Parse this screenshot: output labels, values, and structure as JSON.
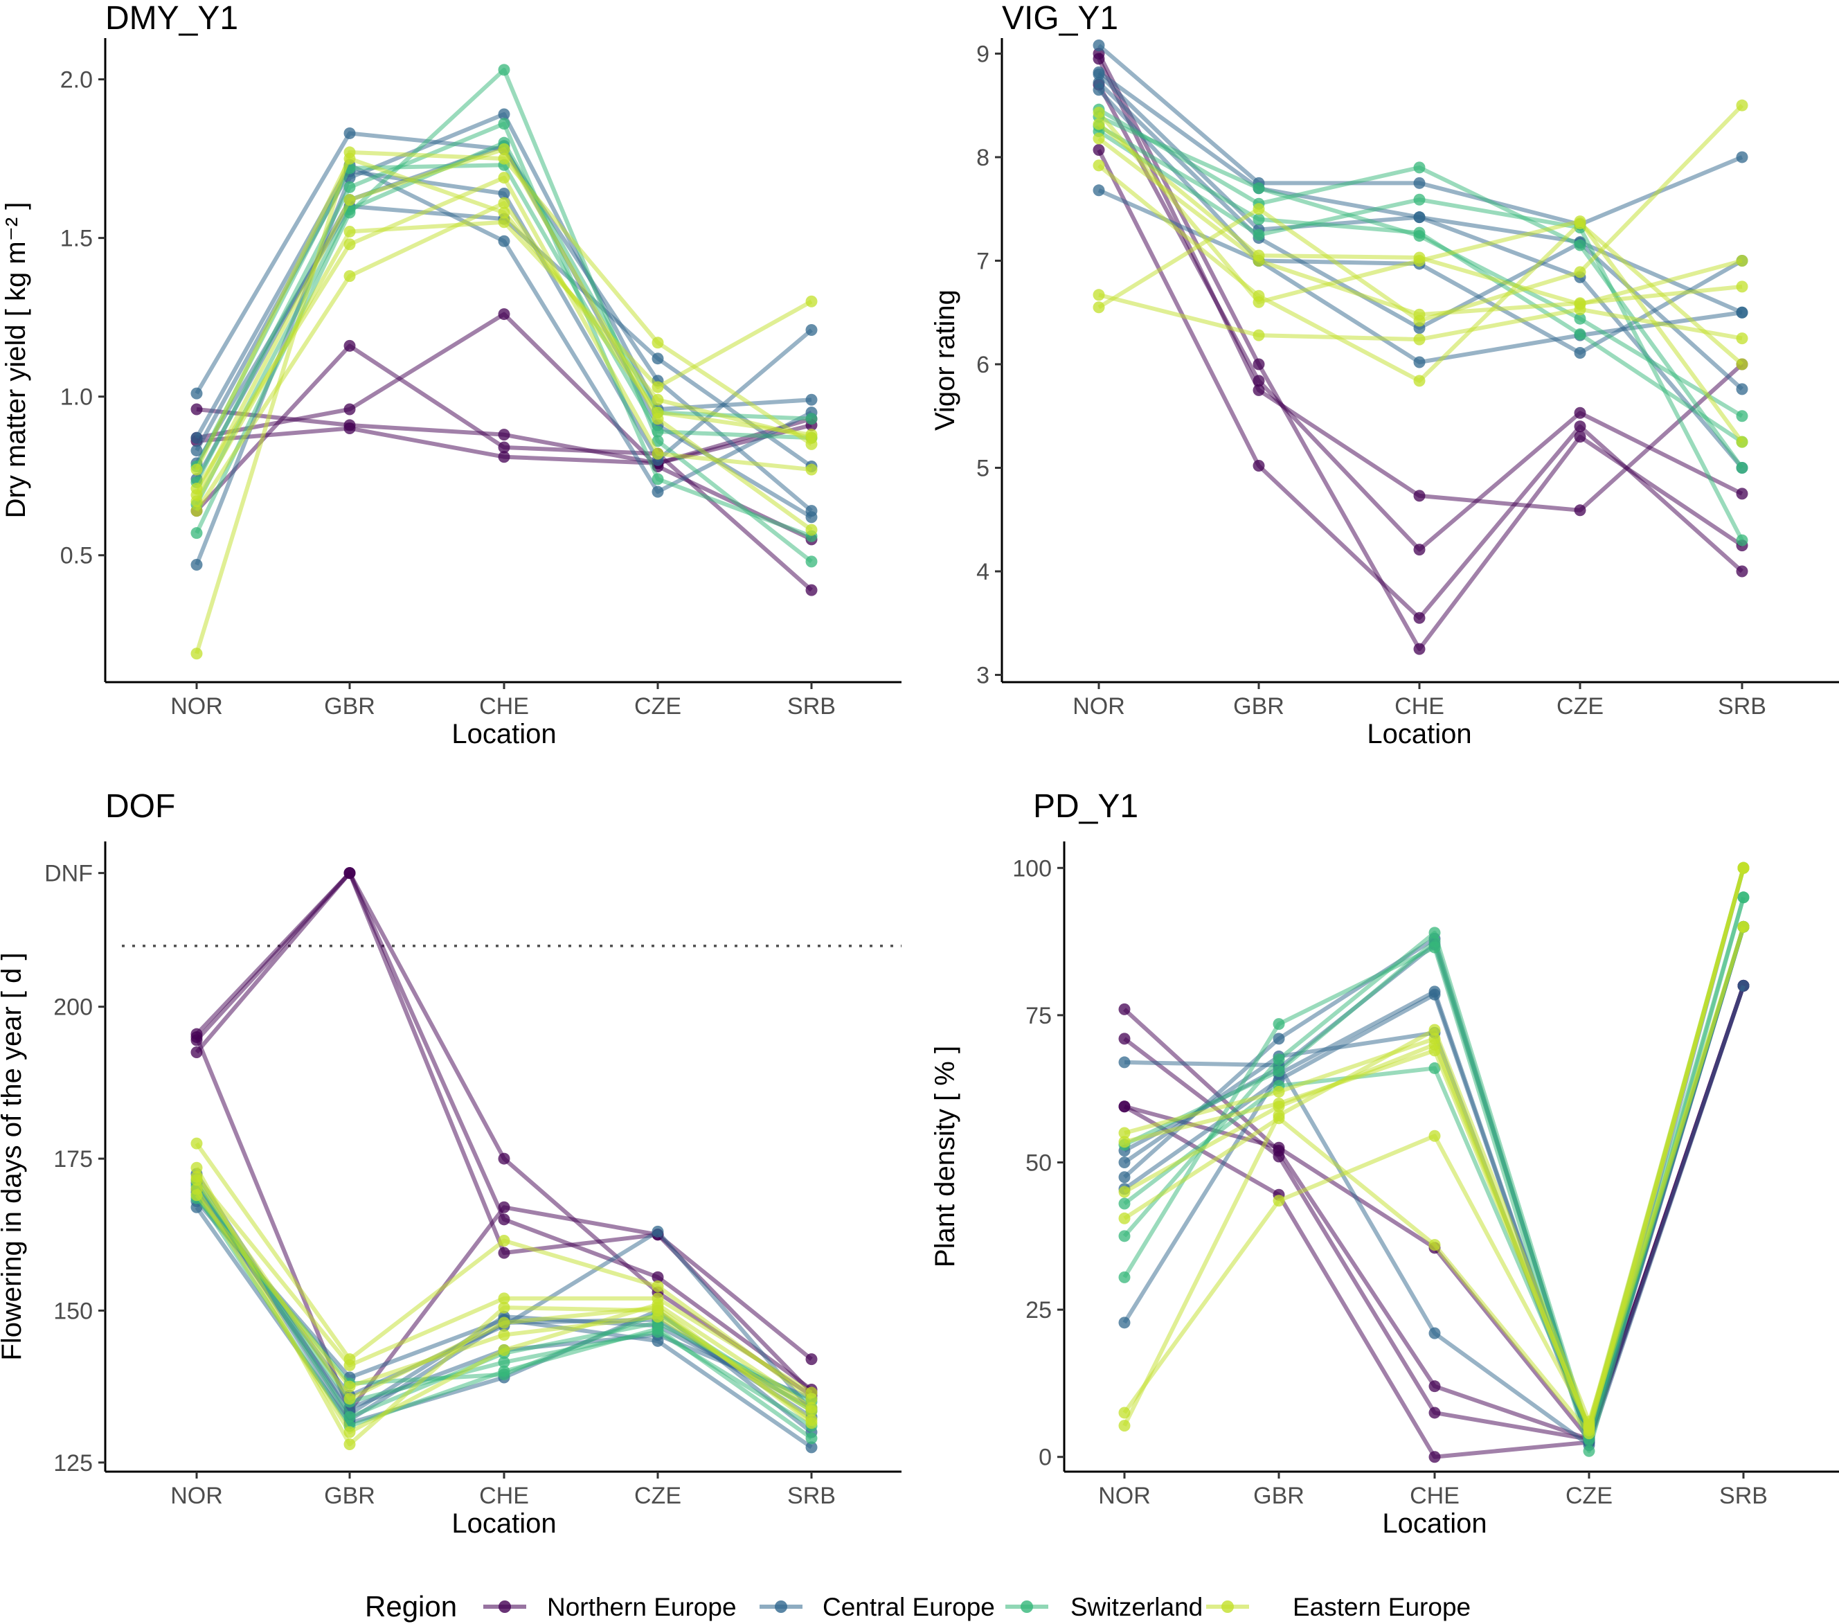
{
  "legend": {
    "title": "Region",
    "entries": [
      {
        "name": "Northern Europe",
        "color": "#440154"
      },
      {
        "name": "Central Europe",
        "color": "#31688E"
      },
      {
        "name": "Switzerland",
        "color": "#35B779"
      },
      {
        "name": "Eastern Europe",
        "color": "#C2E02A"
      }
    ]
  },
  "chart_data": [
    {
      "id": "dmy",
      "type": "line",
      "title": "DMY_Y1",
      "xlabel": "Location",
      "ylabel": "Dry matter yield [ kg m⁻² ]",
      "categories": [
        "NOR",
        "GBR",
        "CHE",
        "CZE",
        "SRB"
      ],
      "ylim": [
        0.1,
        2.13
      ],
      "yticks": [
        {
          "v": 0.5,
          "label": "0.5"
        },
        {
          "v": 1.0,
          "label": "1.0"
        },
        {
          "v": 1.5,
          "label": "1.5"
        },
        {
          "v": 2.0,
          "label": "2.0"
        }
      ],
      "series": [
        {
          "region": "Northern Europe",
          "values": [
            0.96,
            0.91,
            0.88,
            0.79,
            0.91
          ]
        },
        {
          "region": "Northern Europe",
          "values": [
            0.87,
            0.96,
            1.26,
            0.78,
            0.55
          ]
        },
        {
          "region": "Northern Europe",
          "values": [
            0.64,
            1.16,
            0.84,
            0.82,
            0.39
          ]
        },
        {
          "region": "Northern Europe",
          "values": [
            0.86,
            0.9,
            0.81,
            0.79,
            0.93
          ]
        },
        {
          "region": "Central Europe",
          "values": [
            1.01,
            1.83,
            1.78,
            1.05,
            0.64
          ]
        },
        {
          "region": "Central Europe",
          "values": [
            0.47,
            1.69,
            1.89,
            0.96,
            0.99
          ]
        },
        {
          "region": "Central Europe",
          "values": [
            0.83,
            1.71,
            1.64,
            0.8,
            1.21
          ]
        },
        {
          "region": "Central Europe",
          "values": [
            0.79,
            1.6,
            1.56,
            1.12,
            0.78
          ]
        },
        {
          "region": "Central Europe",
          "values": [
            0.87,
            1.73,
            1.49,
            0.7,
            0.95
          ]
        },
        {
          "region": "Central Europe",
          "values": [
            0.74,
            1.62,
            1.79,
            0.91,
            0.62
          ]
        },
        {
          "region": "Switzerland",
          "values": [
            0.57,
            1.58,
            2.03,
            0.86,
            0.48
          ]
        },
        {
          "region": "Switzerland",
          "values": [
            0.73,
            1.66,
            1.86,
            0.74,
            0.56
          ]
        },
        {
          "region": "Switzerland",
          "values": [
            0.78,
            1.72,
            1.73,
            0.89,
            0.87
          ]
        },
        {
          "region": "Switzerland",
          "values": [
            0.66,
            1.59,
            1.8,
            0.95,
            0.93
          ]
        },
        {
          "region": "Eastern Europe",
          "values": [
            0.19,
            1.77,
            1.75,
            1.17,
            0.85
          ]
        },
        {
          "region": "Eastern Europe",
          "values": [
            0.67,
            1.52,
            1.55,
            1.03,
            1.3
          ]
        },
        {
          "region": "Eastern Europe",
          "values": [
            0.71,
            1.48,
            1.69,
            0.82,
            0.77
          ]
        },
        {
          "region": "Eastern Europe",
          "values": [
            0.64,
            1.38,
            1.61,
            0.95,
            0.88
          ]
        },
        {
          "region": "Eastern Europe",
          "values": [
            0.69,
            1.62,
            1.78,
            0.93,
            0.58
          ]
        },
        {
          "region": "Eastern Europe",
          "values": [
            0.77,
            1.75,
            1.58,
            0.99,
            0.87
          ]
        }
      ]
    },
    {
      "id": "vig",
      "type": "line",
      "title": "VIG_Y1",
      "xlabel": "Location",
      "ylabel": "Vigor rating",
      "categories": [
        "NOR",
        "GBR",
        "CHE",
        "CZE",
        "SRB"
      ],
      "ylim": [
        2.93,
        9.15
      ],
      "yticks": [
        {
          "v": 3,
          "label": "3"
        },
        {
          "v": 4,
          "label": "4"
        },
        {
          "v": 5,
          "label": "5"
        },
        {
          "v": 6,
          "label": "6"
        },
        {
          "v": 7,
          "label": "7"
        },
        {
          "v": 8,
          "label": "8"
        },
        {
          "v": 9,
          "label": "9"
        }
      ],
      "series": [
        {
          "region": "Northern Europe",
          "values": [
            9.0,
            6.0,
            3.25,
            5.3,
            4.25
          ]
        },
        {
          "region": "Northern Europe",
          "values": [
            8.07,
            5.02,
            3.55,
            5.4,
            4.0
          ]
        },
        {
          "region": "Northern Europe",
          "values": [
            8.7,
            5.84,
            4.21,
            5.53,
            4.75
          ]
        },
        {
          "region": "Northern Europe",
          "values": [
            8.95,
            5.75,
            4.73,
            4.59,
            6.0
          ]
        },
        {
          "region": "Central Europe",
          "values": [
            9.08,
            7.75,
            7.75,
            7.35,
            8.0
          ]
        },
        {
          "region": "Central Europe",
          "values": [
            8.8,
            7.3,
            7.42,
            6.84,
            5.0
          ]
        },
        {
          "region": "Central Europe",
          "values": [
            7.68,
            7.0,
            6.02,
            6.28,
            6.5
          ]
        },
        {
          "region": "Central Europe",
          "values": [
            8.72,
            7.22,
            6.35,
            7.17,
            5.76
          ]
        },
        {
          "region": "Central Europe",
          "values": [
            8.65,
            7.0,
            6.97,
            6.11,
            7.0
          ]
        },
        {
          "region": "Central Europe",
          "values": [
            8.82,
            7.7,
            7.42,
            7.18,
            6.5
          ]
        },
        {
          "region": "Switzerland",
          "values": [
            8.46,
            7.55,
            7.9,
            7.15,
            5.0
          ]
        },
        {
          "region": "Switzerland",
          "values": [
            8.25,
            7.25,
            7.59,
            7.32,
            4.3
          ]
        },
        {
          "region": "Switzerland",
          "values": [
            8.39,
            7.7,
            7.24,
            6.44,
            5.5
          ]
        },
        {
          "region": "Switzerland",
          "values": [
            8.3,
            7.4,
            7.27,
            6.29,
            5.25
          ]
        },
        {
          "region": "Eastern Europe",
          "values": [
            6.55,
            7.5,
            6.42,
            6.89,
            8.5
          ]
        },
        {
          "region": "Eastern Europe",
          "values": [
            6.67,
            6.28,
            6.24,
            6.53,
            6.25
          ]
        },
        {
          "region": "Eastern Europe",
          "values": [
            7.92,
            6.66,
            5.84,
            7.36,
            6.0
          ]
        },
        {
          "region": "Eastern Europe",
          "values": [
            8.43,
            6.6,
            7.0,
            7.38,
            5.25
          ]
        },
        {
          "region": "Eastern Europe",
          "values": [
            8.18,
            7.0,
            6.48,
            6.59,
            6.75
          ]
        },
        {
          "region": "Eastern Europe",
          "values": [
            8.32,
            7.05,
            7.03,
            6.58,
            7.0
          ]
        }
      ]
    },
    {
      "id": "dof",
      "type": "line",
      "title": "DOF",
      "xlabel": "Location",
      "ylabel": "Flowering in days of the year [ d ]",
      "categories": [
        "NOR",
        "GBR",
        "CHE",
        "CZE",
        "SRB"
      ],
      "ylim": [
        123.5,
        227.2
      ],
      "yticks": [
        {
          "v": 125,
          "label": "125"
        },
        {
          "v": 150,
          "label": "150"
        },
        {
          "v": 175,
          "label": "175"
        },
        {
          "v": 200,
          "label": "200"
        },
        {
          "v": 222,
          "label": "DNF"
        }
      ],
      "hline": 210,
      "series": [
        {
          "region": "Northern Europe",
          "values": [
            195.5,
            222,
            159.5,
            162.5,
            142
          ]
        },
        {
          "region": "Northern Europe",
          "values": [
            192.5,
            222,
            165,
            155.5,
            137
          ]
        },
        {
          "region": "Northern Europe",
          "values": [
            194.5,
            222,
            175,
            153,
            136
          ]
        },
        {
          "region": "Northern Europe",
          "values": [
            195,
            133.5,
            167,
            162.5,
            136.5
          ]
        },
        {
          "region": "Central Europe",
          "values": [
            168,
            139,
            148.5,
            145,
            127.5
          ]
        },
        {
          "region": "Central Europe",
          "values": [
            170,
            136,
            147.5,
            163,
            133.5
          ]
        },
        {
          "region": "Central Europe",
          "values": [
            172.5,
            133,
            149,
            147.5,
            134
          ]
        },
        {
          "region": "Central Europe",
          "values": [
            167,
            131.5,
            139,
            150,
            130
          ]
        },
        {
          "region": "Central Europe",
          "values": [
            169.5,
            134,
            143.5,
            146,
            135.5
          ]
        },
        {
          "region": "Central Europe",
          "values": [
            171,
            132,
            148,
            148.5,
            132.5
          ]
        },
        {
          "region": "Switzerland",
          "values": [
            169,
            131,
            140,
            147,
            129
          ]
        },
        {
          "region": "Switzerland",
          "values": [
            170.5,
            135,
            141.5,
            146.5,
            131
          ]
        },
        {
          "region": "Switzerland",
          "values": [
            168.5,
            138,
            139.5,
            149.5,
            133.5
          ]
        },
        {
          "region": "Switzerland",
          "values": [
            171.5,
            132.5,
            143,
            148,
            135
          ]
        },
        {
          "region": "Eastern Europe",
          "values": [
            177.5,
            142,
            161.5,
            154,
            135.5
          ]
        },
        {
          "region": "Eastern Europe",
          "values": [
            173.5,
            128,
            150.5,
            150,
            132
          ]
        },
        {
          "region": "Eastern Europe",
          "values": [
            172,
            141,
            152,
            152,
            136.5
          ]
        },
        {
          "region": "Eastern Europe",
          "values": [
            170,
            130,
            143.5,
            151,
            134
          ]
        },
        {
          "region": "Eastern Europe",
          "values": [
            171.5,
            135.5,
            148,
            150.5,
            131.5
          ]
        },
        {
          "region": "Eastern Europe",
          "values": [
            169,
            137.5,
            146,
            149,
            133.5
          ]
        }
      ]
    },
    {
      "id": "pd",
      "type": "line",
      "title": "PD_Y1",
      "xlabel": "Location",
      "ylabel": "Plant density [ % ]",
      "categories": [
        "NOR",
        "GBR",
        "CHE",
        "CZE",
        "SRB"
      ],
      "ylim": [
        -2.5,
        104.5
      ],
      "yticks": [
        {
          "v": 0,
          "label": "0"
        },
        {
          "v": 25,
          "label": "25"
        },
        {
          "v": 50,
          "label": "50"
        },
        {
          "v": 75,
          "label": "75"
        },
        {
          "v": 100,
          "label": "100"
        }
      ],
      "series": [
        {
          "region": "Northern Europe",
          "values": [
            76,
            52,
            12,
            3,
            80
          ]
        },
        {
          "region": "Northern Europe",
          "values": [
            71,
            51,
            7.5,
            3,
            80
          ]
        },
        {
          "region": "Northern Europe",
          "values": [
            59.5,
            44.5,
            0,
            2.5,
            80
          ]
        },
        {
          "region": "Northern Europe",
          "values": [
            59.5,
            52.5,
            35.5,
            3,
            80
          ]
        },
        {
          "region": "Central Europe",
          "values": [
            67,
            66.5,
            21,
            2,
            80
          ]
        },
        {
          "region": "Central Europe",
          "values": [
            22.8,
            65,
            79,
            2.5,
            90
          ]
        },
        {
          "region": "Central Europe",
          "values": [
            47.5,
            71,
            88,
            3,
            90
          ]
        },
        {
          "region": "Central Europe",
          "values": [
            50,
            68,
            72,
            3,
            90
          ]
        },
        {
          "region": "Central Europe",
          "values": [
            45.5,
            64,
            78.5,
            2.5,
            100
          ]
        },
        {
          "region": "Central Europe",
          "values": [
            52,
            66,
            87,
            3.5,
            90
          ]
        },
        {
          "region": "Switzerland",
          "values": [
            30.5,
            73.5,
            86.5,
            1,
            95
          ]
        },
        {
          "region": "Switzerland",
          "values": [
            37.5,
            67.5,
            89,
            4,
            90
          ]
        },
        {
          "region": "Switzerland",
          "values": [
            43,
            63,
            66,
            5,
            100
          ]
        },
        {
          "region": "Switzerland",
          "values": [
            53,
            65.5,
            87.5,
            3,
            95
          ]
        },
        {
          "region": "Eastern Europe",
          "values": [
            7.5,
            43.5,
            54.5,
            5.5,
            100
          ]
        },
        {
          "region": "Eastern Europe",
          "values": [
            5.3,
            58,
            72.5,
            6,
            90
          ]
        },
        {
          "region": "Eastern Europe",
          "values": [
            40.5,
            57.5,
            36,
            4,
            100
          ]
        },
        {
          "region": "Eastern Europe",
          "values": [
            45,
            59.5,
            70,
            5,
            90
          ]
        },
        {
          "region": "Eastern Europe",
          "values": [
            55,
            62,
            71,
            4.5,
            100
          ]
        },
        {
          "region": "Eastern Europe",
          "values": [
            53.5,
            60,
            69,
            5,
            100
          ]
        }
      ]
    }
  ]
}
